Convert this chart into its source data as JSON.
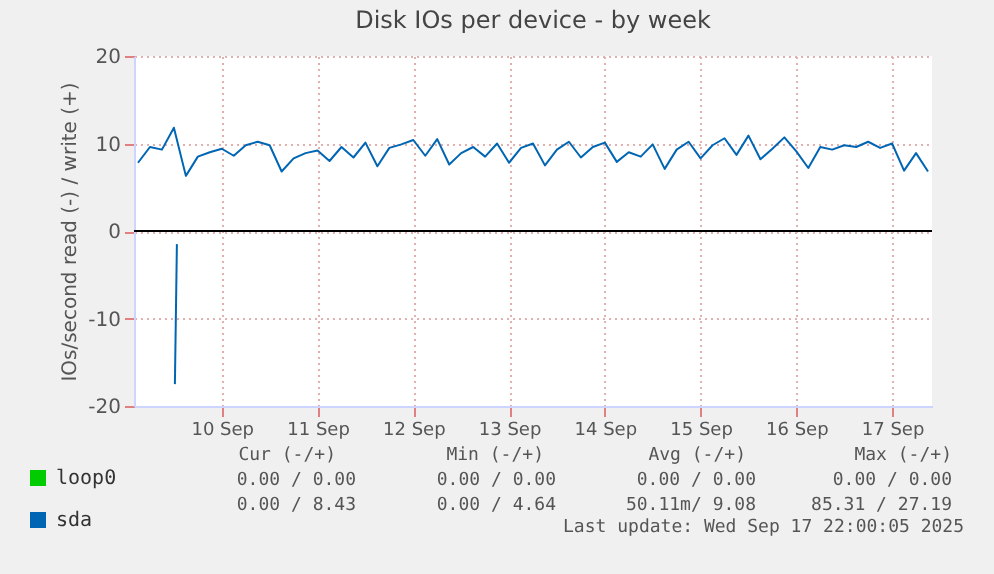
{
  "chart_data": {
    "type": "line",
    "title": "Disk IOs per device - by week",
    "ylabel": "IOs/second read (-) / write (+)",
    "xlim": [
      "2025-09-09T14:00",
      "2025-09-17T22:00"
    ],
    "xticks": [
      {
        "value": "2025-09-10T12:00",
        "label": "10 Sep"
      },
      {
        "value": "2025-09-11T12:00",
        "label": "11 Sep"
      },
      {
        "value": "2025-09-12T12:00",
        "label": "12 Sep"
      },
      {
        "value": "2025-09-13T12:00",
        "label": "13 Sep"
      },
      {
        "value": "2025-09-14T12:00",
        "label": "14 Sep"
      },
      {
        "value": "2025-09-15T12:00",
        "label": "15 Sep"
      },
      {
        "value": "2025-09-16T12:00",
        "label": "16 Sep"
      },
      {
        "value": "2025-09-17T12:00",
        "label": "17 Sep"
      }
    ],
    "ylim": [
      -20,
      20
    ],
    "yticks": [
      -20,
      -10,
      0,
      10,
      20
    ],
    "grid": true,
    "legend": "bottom left",
    "ref_lines": [
      {
        "axis": "y",
        "value": 0,
        "color": "#000000"
      }
    ],
    "series": [
      {
        "name": "loop0",
        "color": "#00cc00"
      },
      {
        "name": "sda",
        "color": "#0066b3",
        "x": [
          "2025-09-09T15:00",
          "2025-09-09T18:00",
          "2025-09-09T21:00",
          "2025-09-10T00:00",
          "2025-09-10T03:00",
          "2025-09-10T06:00",
          "2025-09-10T09:00",
          "2025-09-10T12:00",
          "2025-09-10T15:00",
          "2025-09-10T18:00",
          "2025-09-10T21:00",
          "2025-09-11T00:00",
          "2025-09-11T03:00",
          "2025-09-11T06:00",
          "2025-09-11T09:00",
          "2025-09-11T12:00",
          "2025-09-11T15:00",
          "2025-09-11T18:00",
          "2025-09-11T21:00",
          "2025-09-12T00:00",
          "2025-09-12T03:00",
          "2025-09-12T06:00",
          "2025-09-12T09:00",
          "2025-09-12T12:00",
          "2025-09-12T15:00",
          "2025-09-12T18:00",
          "2025-09-12T21:00",
          "2025-09-13T00:00",
          "2025-09-13T03:00",
          "2025-09-13T06:00",
          "2025-09-13T09:00",
          "2025-09-13T12:00",
          "2025-09-13T15:00",
          "2025-09-13T18:00",
          "2025-09-13T21:00",
          "2025-09-14T00:00",
          "2025-09-14T03:00",
          "2025-09-14T06:00",
          "2025-09-14T09:00",
          "2025-09-14T12:00",
          "2025-09-14T15:00",
          "2025-09-14T18:00",
          "2025-09-14T21:00",
          "2025-09-15T00:00",
          "2025-09-15T03:00",
          "2025-09-15T06:00",
          "2025-09-15T09:00",
          "2025-09-15T12:00",
          "2025-09-15T15:00",
          "2025-09-15T18:00",
          "2025-09-15T21:00",
          "2025-09-16T00:00",
          "2025-09-16T03:00",
          "2025-09-16T06:00",
          "2025-09-16T09:00",
          "2025-09-16T12:00",
          "2025-09-16T15:00",
          "2025-09-16T18:00",
          "2025-09-16T21:00",
          "2025-09-17T00:00",
          "2025-09-17T03:00",
          "2025-09-17T06:00",
          "2025-09-17T09:00",
          "2025-09-17T12:00",
          "2025-09-17T15:00",
          "2025-09-17T18:00",
          "2025-09-17T21:00"
        ],
        "values": [
          7.8,
          9.6,
          9.3,
          11.8,
          6.3,
          8.5,
          9.0,
          9.4,
          8.6,
          9.8,
          10.2,
          9.8,
          6.8,
          8.3,
          8.9,
          9.2,
          8.0,
          9.6,
          8.4,
          10.1,
          7.4,
          9.5,
          9.9,
          10.4,
          8.6,
          10.5,
          7.6,
          8.9,
          9.6,
          8.5,
          10.0,
          7.8,
          9.5,
          10.0,
          7.5,
          9.3,
          10.2,
          8.4,
          9.6,
          10.1,
          7.9,
          9.0,
          8.5,
          9.9,
          7.1,
          9.3,
          10.2,
          8.3,
          9.8,
          10.6,
          8.7,
          10.9,
          8.2,
          9.4,
          10.7,
          9.1,
          7.2,
          9.6,
          9.3,
          9.8,
          9.6,
          10.2,
          9.5,
          10.0,
          6.9,
          8.9,
          6.8
        ]
      },
      {
        "color": "#0066b3",
        "x": [
          "2025-09-10T00:15",
          "2025-09-10T00:45"
        ],
        "values": [
          -17.5,
          -1.5
        ]
      }
    ],
    "annotations": [
      "Cur (-/+)",
      "Min (-/+)",
      "Avg (-/+)",
      "Max (-/+)",
      "0.00 /  0.00",
      "0.00 /  0.00",
      "0.00 /  0.00",
      "0.00 /  0.00",
      "0.00 /  8.43",
      "0.00 /  4.64",
      "50.11m/  9.08",
      "85.31 / 27.19",
      "Last update: Wed Sep 17 22:00:05 2025"
    ]
  }
}
